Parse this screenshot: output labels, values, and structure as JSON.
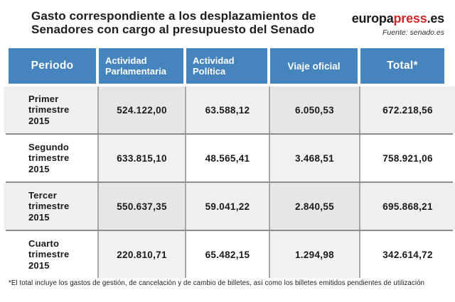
{
  "title": {
    "line1": "Gasto correspondiente a los desplazamientos de",
    "line2": "Senadores con cargo al presupuesto del Senado"
  },
  "brand": {
    "logo_prefix": "europa",
    "logo_accent": "press",
    "logo_suffix": ".es",
    "source": "Fuente: senado.es"
  },
  "table": {
    "columns": [
      "Periodo",
      "Actividad Parlamentaria",
      "Actividad Política",
      "Viaje oficial",
      "Total*"
    ],
    "rows": [
      {
        "period": "Primer trimestre 2015",
        "values": [
          "524.122,00",
          "63.588,12",
          "6.050,53",
          "672.218,56"
        ]
      },
      {
        "period": "Segundo trimestre 2015",
        "values": [
          "633.815,10",
          "48.565,41",
          "3.468,51",
          "758.921,06"
        ]
      },
      {
        "period": "Tercer trimestre 2015",
        "values": [
          "550.637,35",
          "59.041,22",
          "2.840,55",
          "695.868,21"
        ]
      },
      {
        "period": "Cuarto trimestre 2015",
        "values": [
          "220.810,71",
          "65.482,15",
          "1.294,98",
          "342.614,72"
        ]
      }
    ]
  },
  "footnote": "*El total incluye los gastos de gestión, de cancelación y de cambio de billetes, así como los billetes emitidos pendientes de utilización",
  "colors": {
    "header_blue": "#4584bd",
    "accent_red": "#d2262b",
    "row_shade": "#efefee",
    "cell_shade_dark": "#e6e6e5",
    "cell_shade_light": "#f1f1f0",
    "line_gray": "#8d8d8d"
  },
  "chart_data": {
    "type": "table",
    "title": "Gasto correspondiente a los desplazamientos de Senadores con cargo al presupuesto del Senado",
    "columns": [
      "Periodo",
      "Actividad Parlamentaria",
      "Actividad Política",
      "Viaje oficial",
      "Total*"
    ],
    "rows": [
      [
        "Primer trimestre 2015",
        524122.0,
        63588.12,
        6050.53,
        672218.56
      ],
      [
        "Segundo trimestre 2015",
        633815.1,
        48565.41,
        3468.51,
        758921.06
      ],
      [
        "Tercer trimestre 2015",
        550637.35,
        59041.22,
        2840.55,
        695868.21
      ],
      [
        "Cuarto trimestre 2015",
        220810.71,
        65482.15,
        1294.98,
        342614.72
      ]
    ],
    "footnote": "*El total incluye los gastos de gestión, de cancelación y de cambio de billetes, así como los billetes emitidos pendientes de utilización",
    "source": "senado.es"
  }
}
